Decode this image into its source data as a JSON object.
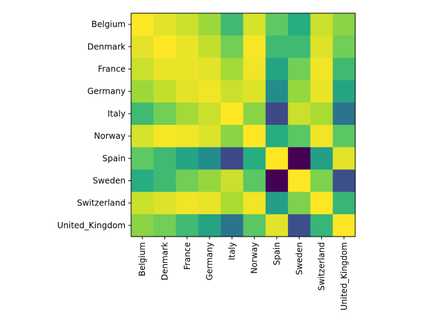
{
  "chart_data": {
    "type": "heatmap",
    "colormap": "viridis",
    "value_range": [
      0,
      1
    ],
    "grid": false,
    "colorbar": false,
    "x_categories": [
      "Belgium",
      "Denmark",
      "France",
      "Germany",
      "Italy",
      "Norway",
      "Spain",
      "Sweden",
      "Switzerland",
      "United_Kingdom"
    ],
    "y_categories": [
      "Belgium",
      "Denmark",
      "France",
      "Germany",
      "Italy",
      "Norway",
      "Spain",
      "Sweden",
      "Switzerland",
      "United_Kingdom"
    ],
    "values": [
      [
        1.0,
        0.96,
        0.92,
        0.85,
        0.68,
        0.94,
        0.75,
        0.62,
        0.92,
        0.82
      ],
      [
        0.96,
        1.0,
        0.97,
        0.91,
        0.78,
        0.99,
        0.68,
        0.68,
        0.95,
        0.78
      ],
      [
        0.92,
        0.97,
        0.97,
        0.96,
        0.86,
        0.98,
        0.58,
        0.78,
        0.98,
        0.68
      ],
      [
        0.85,
        0.91,
        0.96,
        0.98,
        0.92,
        0.95,
        0.48,
        0.84,
        0.97,
        0.58
      ],
      [
        0.68,
        0.78,
        0.86,
        0.92,
        1.0,
        0.82,
        0.22,
        0.92,
        0.87,
        0.38
      ],
      [
        0.94,
        0.99,
        0.98,
        0.95,
        0.82,
        1.0,
        0.62,
        0.74,
        0.98,
        0.74
      ],
      [
        0.75,
        0.68,
        0.58,
        0.48,
        0.22,
        0.62,
        1.0,
        0.0,
        0.56,
        0.96
      ],
      [
        0.62,
        0.68,
        0.78,
        0.84,
        0.92,
        0.74,
        0.0,
        1.0,
        0.8,
        0.24
      ],
      [
        0.92,
        0.95,
        0.98,
        0.97,
        0.87,
        0.98,
        0.56,
        0.8,
        1.0,
        0.66
      ],
      [
        0.82,
        0.78,
        0.68,
        0.58,
        0.38,
        0.74,
        0.96,
        0.24,
        0.66,
        1.0
      ]
    ]
  }
}
